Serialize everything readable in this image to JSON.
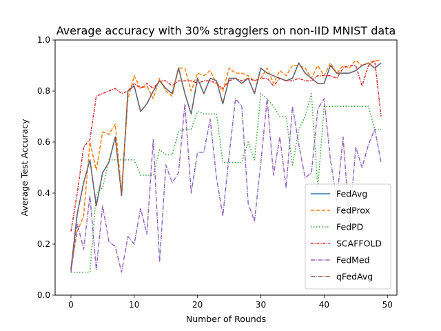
{
  "chart_data": {
    "type": "line",
    "title": "Average accuracy with 30% stragglers on non-IID MNIST data",
    "xlabel": "Number of Rounds",
    "ylabel": "Average Test Accuracy",
    "xlim": [
      -2.5,
      51.5
    ],
    "ylim": [
      0.0,
      1.0
    ],
    "xticks": [
      0,
      10,
      20,
      30,
      40,
      50
    ],
    "yticks": [
      0.0,
      0.2,
      0.4,
      0.6,
      0.8,
      1.0
    ],
    "xtick_labels": [
      "0",
      "10",
      "20",
      "30",
      "40",
      "50"
    ],
    "ytick_labels": [
      "0.0",
      "0.2",
      "0.4",
      "0.6",
      "0.8",
      "1.0"
    ],
    "grid": false,
    "legend": "lower-right",
    "x": [
      0,
      1,
      2,
      3,
      4,
      5,
      6,
      7,
      8,
      9,
      10,
      11,
      12,
      13,
      14,
      15,
      16,
      17,
      18,
      19,
      20,
      21,
      22,
      23,
      24,
      25,
      26,
      27,
      28,
      29,
      30,
      31,
      32,
      33,
      34,
      35,
      36,
      37,
      38,
      39,
      40,
      41,
      42,
      43,
      44,
      45,
      46,
      47,
      48,
      49
    ],
    "series": [
      {
        "name": "FedAvg",
        "color": "#1f77b4",
        "dash": "solid",
        "values": [
          0.1,
          0.32,
          0.44,
          0.53,
          0.35,
          0.48,
          0.52,
          0.62,
          0.39,
          0.8,
          0.82,
          0.72,
          0.75,
          0.8,
          0.84,
          0.81,
          0.79,
          0.89,
          0.79,
          0.71,
          0.85,
          0.79,
          0.85,
          0.84,
          0.75,
          0.85,
          0.85,
          0.83,
          0.85,
          0.79,
          0.89,
          0.87,
          0.86,
          0.85,
          0.84,
          0.85,
          0.91,
          0.87,
          0.85,
          0.83,
          0.83,
          0.9,
          0.87,
          0.87,
          0.87,
          0.88,
          0.9,
          0.91,
          0.89,
          0.91
        ]
      },
      {
        "name": "FedProx",
        "color": "#ff7f0e",
        "dash": "dashed",
        "values": [
          0.1,
          0.25,
          0.31,
          0.6,
          0.49,
          0.64,
          0.63,
          0.67,
          0.4,
          0.77,
          0.86,
          0.81,
          0.82,
          0.77,
          0.85,
          0.8,
          0.78,
          0.89,
          0.89,
          0.8,
          0.87,
          0.86,
          0.88,
          0.83,
          0.8,
          0.89,
          0.87,
          0.87,
          0.86,
          0.84,
          0.85,
          0.89,
          0.83,
          0.88,
          0.86,
          0.9,
          0.9,
          0.89,
          0.85,
          0.9,
          0.86,
          0.91,
          0.87,
          0.9,
          0.89,
          0.92,
          0.9,
          0.91,
          0.92,
          0.92
        ]
      },
      {
        "name": "FedPD",
        "color": "#2ca02c",
        "dash": "dotted",
        "values": [
          0.09,
          0.09,
          0.09,
          0.09,
          0.4,
          0.42,
          0.53,
          0.53,
          0.53,
          0.53,
          0.53,
          0.47,
          0.47,
          0.47,
          0.57,
          0.55,
          0.55,
          0.64,
          0.65,
          0.65,
          0.72,
          0.71,
          0.71,
          0.71,
          0.52,
          0.52,
          0.52,
          0.52,
          0.6,
          0.53,
          0.79,
          0.77,
          0.74,
          0.7,
          0.7,
          0.51,
          0.65,
          0.7,
          0.79,
          0.42,
          0.74,
          0.74,
          0.74,
          0.74,
          0.74,
          0.74,
          0.74,
          0.74,
          0.65,
          0.65
        ]
      },
      {
        "name": "SCAFFOLD",
        "color": "#d62728",
        "dash": "dashdot-dense",
        "values": [
          0.25,
          0.4,
          0.58,
          0.61,
          0.78,
          0.79,
          0.8,
          0.81,
          0.79,
          0.8,
          0.83,
          0.81,
          0.83,
          0.81,
          0.84,
          0.84,
          0.82,
          0.84,
          0.84,
          0.84,
          0.83,
          0.84,
          0.84,
          0.83,
          0.81,
          0.84,
          0.85,
          0.84,
          0.85,
          0.84,
          0.85,
          0.85,
          0.82,
          0.85,
          0.84,
          0.84,
          0.85,
          0.84,
          0.84,
          0.86,
          0.86,
          0.86,
          0.85,
          0.89,
          0.9,
          0.9,
          0.82,
          0.9,
          0.92,
          0.7
        ]
      },
      {
        "name": "FedMed",
        "color": "#9467bd",
        "dash": "dashdot",
        "values": [
          0.09,
          0.28,
          0.18,
          0.39,
          0.1,
          0.35,
          0.21,
          0.19,
          0.09,
          0.23,
          0.2,
          0.34,
          0.24,
          0.61,
          0.13,
          0.51,
          0.44,
          0.48,
          0.75,
          0.4,
          0.56,
          0.56,
          0.69,
          0.46,
          0.31,
          0.55,
          0.77,
          0.74,
          0.36,
          0.29,
          0.52,
          0.77,
          0.47,
          0.62,
          0.42,
          0.74,
          0.59,
          0.46,
          0.48,
          0.73,
          0.77,
          0.53,
          0.37,
          0.62,
          0.28,
          0.58,
          0.5,
          0.59,
          0.65,
          0.52
        ]
      },
      {
        "name": "qFedAvg",
        "color": "#8c564b",
        "dash": "dashdot",
        "values": [
          0.1,
          0.32,
          0.44,
          0.53,
          0.35,
          0.48,
          0.52,
          0.62,
          0.39,
          0.8,
          0.82,
          0.72,
          0.75,
          0.8,
          0.84,
          0.81,
          0.79,
          0.89,
          0.79,
          0.71,
          0.85,
          0.79,
          0.85,
          0.84,
          0.75,
          0.85,
          0.85,
          0.83,
          0.85,
          0.79,
          0.89,
          0.87,
          0.86,
          0.85,
          0.84,
          0.85,
          0.91,
          0.87,
          0.85,
          0.83,
          0.83,
          0.9,
          0.87,
          0.87,
          0.87,
          0.88,
          0.9,
          0.91,
          0.89,
          0.91
        ]
      }
    ]
  }
}
